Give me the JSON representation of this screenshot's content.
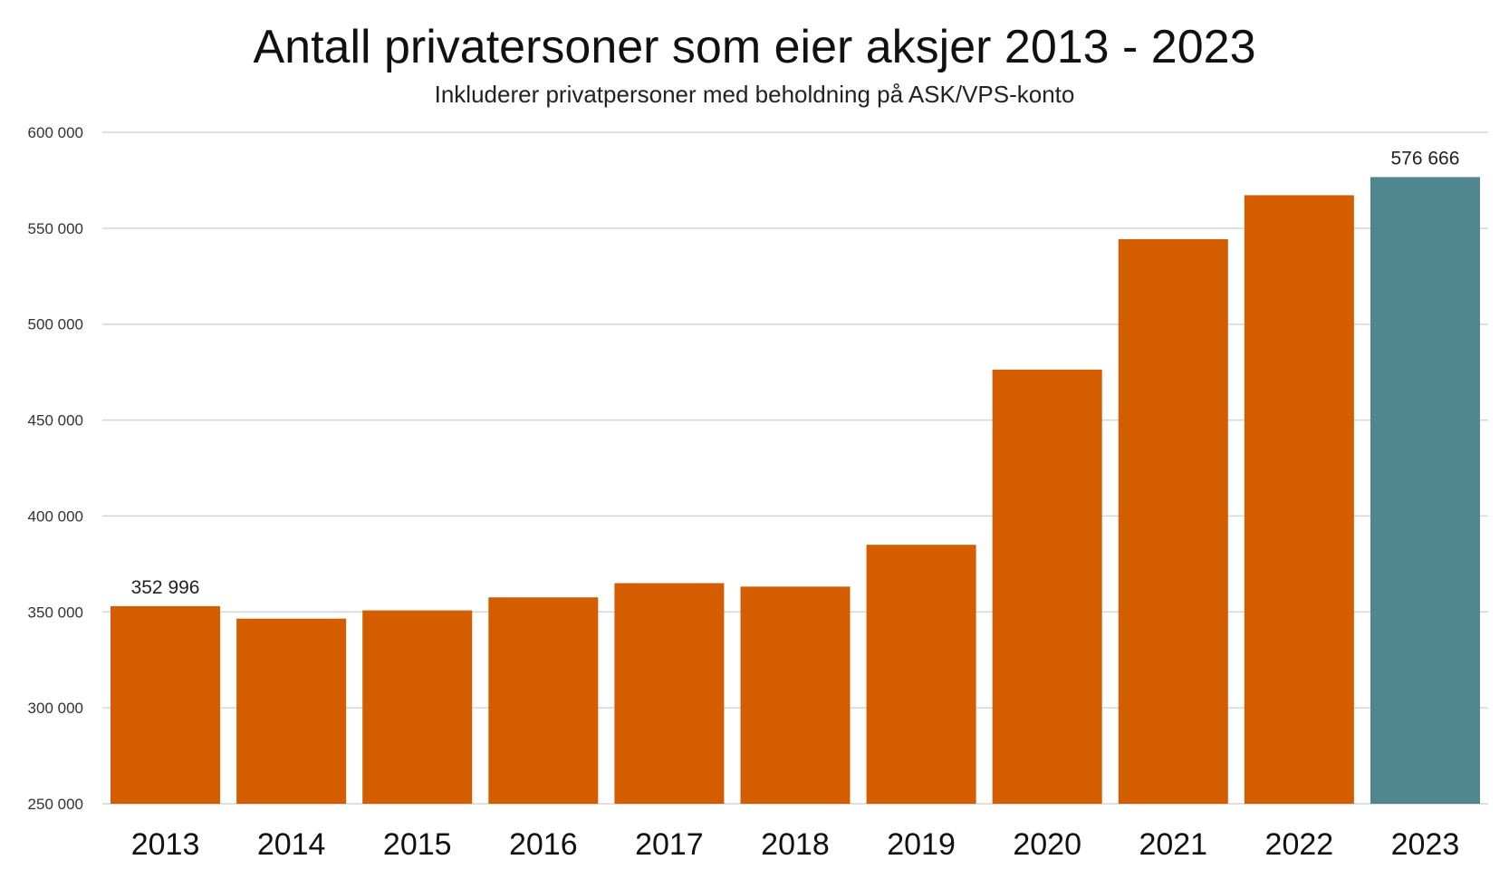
{
  "chart_data": {
    "type": "bar",
    "title": "Antall privatersoner som eier aksjer 2013 - 2023",
    "subtitle": "Inkluderer privatpersoner med beholdning på ASK/VPS-konto",
    "categories": [
      "2013",
      "2014",
      "2015",
      "2016",
      "2017",
      "2018",
      "2019",
      "2020",
      "2021",
      "2022",
      "2023"
    ],
    "values": [
      352996,
      346500,
      350800,
      357600,
      365000,
      363200,
      385000,
      476300,
      544300,
      567200,
      576666
    ],
    "bar_colors": [
      "#d45d00",
      "#d45d00",
      "#d45d00",
      "#d45d00",
      "#d45d00",
      "#d45d00",
      "#d45d00",
      "#d45d00",
      "#d45d00",
      "#d45d00",
      "#50868e"
    ],
    "data_labels": [
      {
        "index": 0,
        "text": "352 996"
      },
      {
        "index": 10,
        "text": "576 666"
      }
    ],
    "ylim": [
      250000,
      600000
    ],
    "yticks": [
      250000,
      300000,
      350000,
      400000,
      450000,
      500000,
      550000,
      600000
    ],
    "ytick_labels": [
      "250 000",
      "300 000",
      "350 000",
      "400 000",
      "450 000",
      "500 000",
      "550 000",
      "600 000"
    ],
    "grid": true,
    "legend": "none",
    "xlabel": "",
    "ylabel": ""
  }
}
